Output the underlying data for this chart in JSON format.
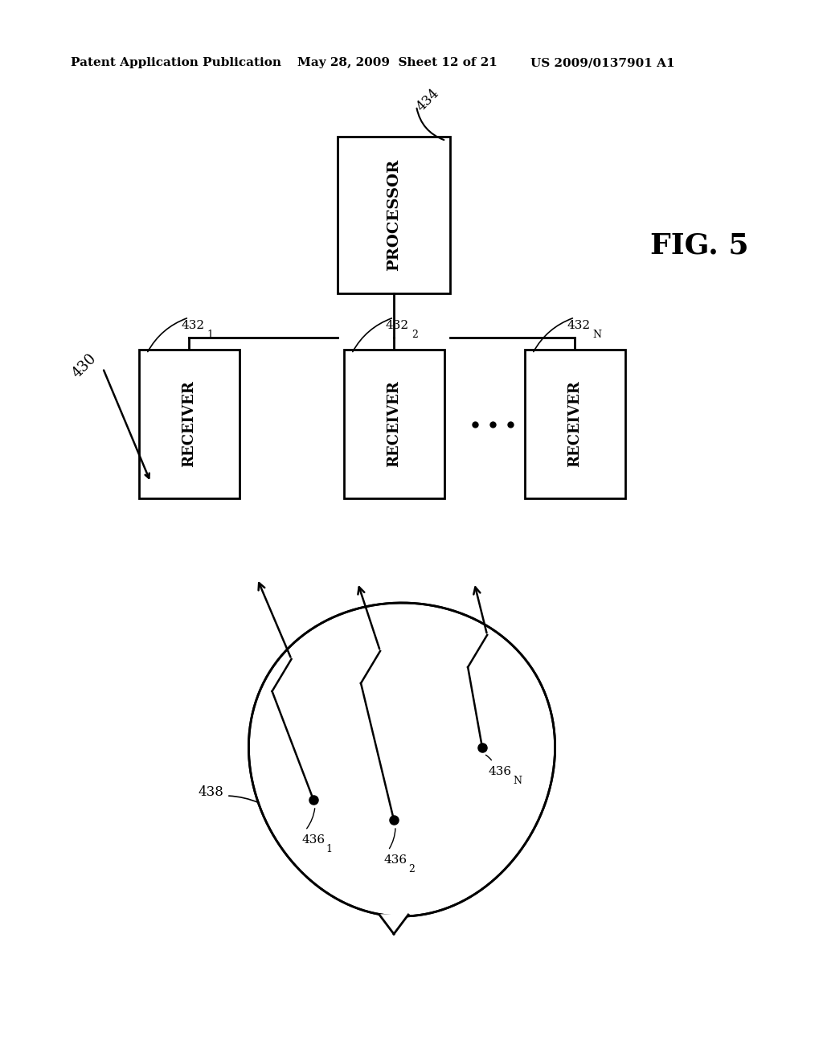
{
  "bg_color": "#ffffff",
  "header_left": "Patent Application Publication",
  "header_mid": "May 28, 2009  Sheet 12 of 21",
  "header_right": "US 2009/0137901 A1",
  "fig_label": "FIG. 5",
  "processor_label": "PROCESSOR",
  "processor_ref": "434",
  "receiver_label": "RECEIVER",
  "receiver_refs_text": [
    "432",
    "432",
    "432"
  ],
  "receiver_subs": [
    "1",
    "2",
    "N"
  ],
  "system_ref": "430",
  "body_ref": "438",
  "sensor_refs_text": [
    "436",
    "436",
    "436"
  ],
  "sensor_subs": [
    "1",
    "2",
    "N"
  ]
}
